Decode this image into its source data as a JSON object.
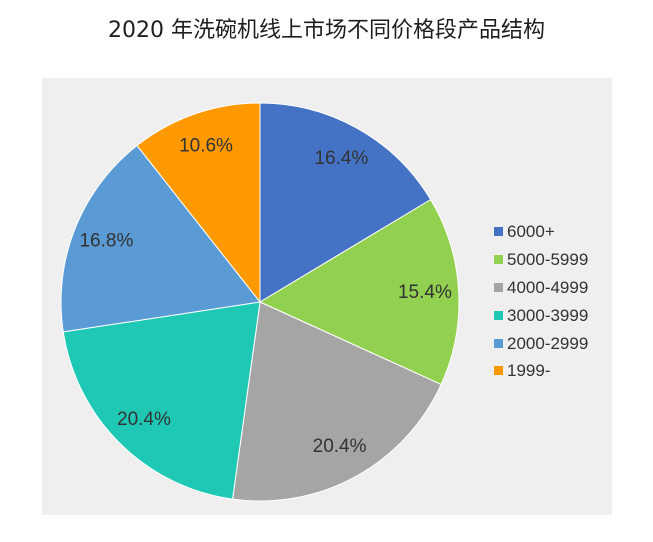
{
  "chart_data": {
    "type": "pie",
    "title": "2020 年洗碗机线上市场不同价格段产品结构",
    "categories": [
      "6000+",
      "5000-5999",
      "4000-4999",
      "3000-3999",
      "2000-2999",
      "1999-"
    ],
    "values": [
      16.4,
      15.4,
      20.4,
      20.4,
      16.8,
      10.6
    ],
    "data_labels": [
      "16.4%",
      "15.4%",
      "20.4%",
      "20.4%",
      "16.8%",
      "10.6%"
    ],
    "colors": [
      "#4472C4",
      "#92D050",
      "#A5A5A5",
      "#1FC8B5",
      "#5B9BD5",
      "#FF9900"
    ],
    "legend": {
      "position": "right"
    }
  }
}
